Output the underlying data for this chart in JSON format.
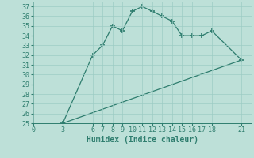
{
  "xlabel": "Humidex (Indice chaleur)",
  "line1_x": [
    3,
    6,
    7,
    8,
    9,
    10,
    11,
    12,
    13,
    14,
    15,
    16,
    17,
    18,
    21
  ],
  "line1_y": [
    25,
    32,
    33,
    35,
    34.5,
    36.5,
    37,
    36.5,
    36,
    35.5,
    34,
    34,
    34,
    34.5,
    31.5
  ],
  "line2_x": [
    3,
    21
  ],
  "line2_y": [
    25,
    31.5
  ],
  "color": "#2e7d6e",
  "bg_color": "#bde0d8",
  "grid_color": "#9dccc4",
  "xlim": [
    0,
    22
  ],
  "ylim": [
    25,
    37.5
  ],
  "xticks": [
    0,
    3,
    6,
    7,
    8,
    9,
    10,
    11,
    12,
    13,
    14,
    15,
    16,
    17,
    18,
    21
  ],
  "yticks": [
    25,
    26,
    27,
    28,
    29,
    30,
    31,
    32,
    33,
    34,
    35,
    36,
    37
  ],
  "marker": "+",
  "markersize": 4,
  "linewidth": 0.9,
  "xlabel_fontsize": 7,
  "tick_fontsize": 6
}
